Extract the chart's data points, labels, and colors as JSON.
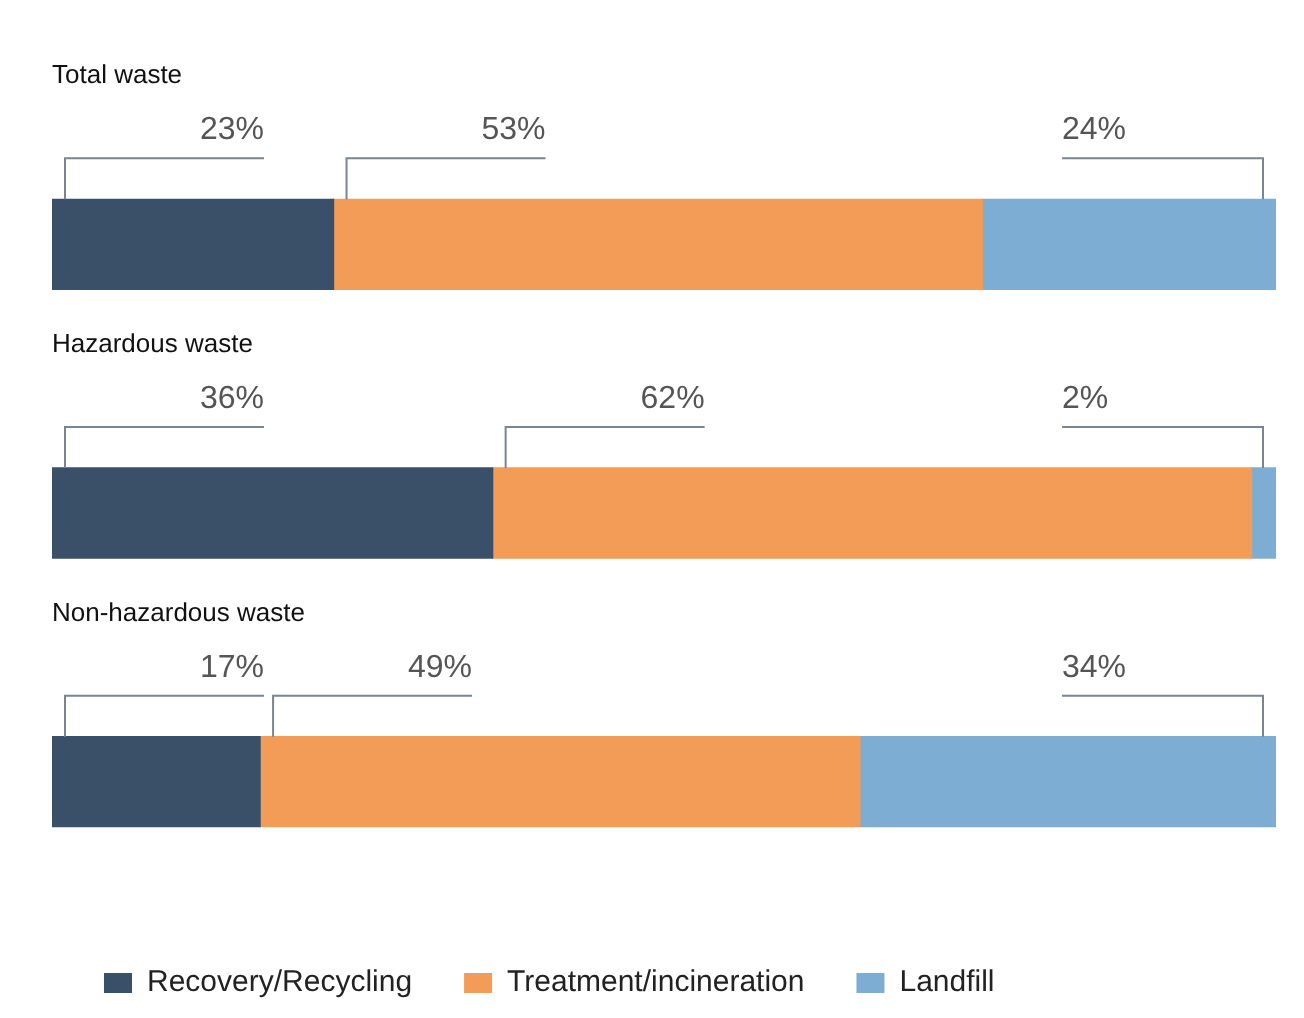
{
  "chart_data": {
    "type": "bar",
    "orientation": "horizontal",
    "stacked": true,
    "categories": [
      "Total waste",
      "Hazardous waste",
      "Non-hazardous waste"
    ],
    "series": [
      {
        "name": "Recovery/Recycling",
        "color": "#3a5069",
        "values": [
          23,
          36,
          17
        ],
        "value_labels": [
          "23%",
          "36%",
          "17%"
        ]
      },
      {
        "name": "Treatment/incineration",
        "color": "#f39c57",
        "values": [
          53,
          62,
          49
        ],
        "value_labels": [
          "53%",
          "62%",
          "49%"
        ]
      },
      {
        "name": "Landfill",
        "color": "#7eadd3",
        "values": [
          24,
          2,
          34
        ],
        "value_labels": [
          "24%",
          "2%",
          "34%"
        ]
      }
    ],
    "xlim": [
      0,
      100
    ],
    "tick_labels": false,
    "legend": "bottom"
  }
}
